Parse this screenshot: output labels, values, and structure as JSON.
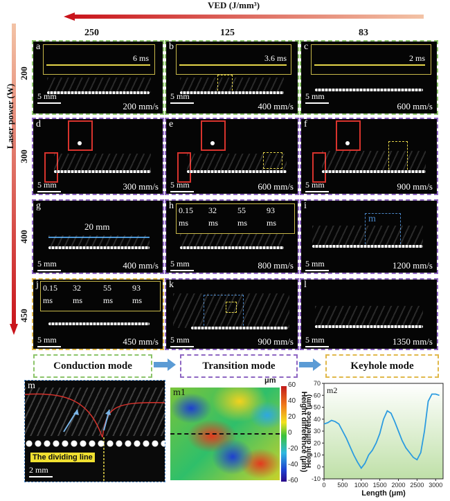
{
  "header": {
    "ved_label": "VED (J/mm³)",
    "columns": [
      "250",
      "125",
      "83"
    ],
    "y_axis_label": "Laser power (W)",
    "rows": [
      "200",
      "300",
      "400",
      "450"
    ]
  },
  "panels": [
    {
      "id": "a",
      "speed": "200 mm/s",
      "scale": "5 mm",
      "inset_time": "6 ms"
    },
    {
      "id": "b",
      "speed": "400 mm/s",
      "scale": "5 mm",
      "inset_time": "3.6 ms"
    },
    {
      "id": "c",
      "speed": "600 mm/s",
      "scale": "5 mm",
      "inset_time": "2 ms"
    },
    {
      "id": "d",
      "speed": "300 mm/s",
      "scale": "5 mm"
    },
    {
      "id": "e",
      "speed": "600 mm/s",
      "scale": "5 mm"
    },
    {
      "id": "f",
      "speed": "900 mm/s",
      "scale": "5 mm"
    },
    {
      "id": "g",
      "speed": "400 mm/s",
      "scale": "5 mm",
      "length": "20 mm"
    },
    {
      "id": "h",
      "speed": "800 mm/s",
      "scale": "5 mm"
    },
    {
      "id": "i",
      "speed": "1200 mm/s",
      "scale": "5 mm",
      "roi": "m"
    },
    {
      "id": "j",
      "speed": "450 mm/s",
      "scale": "5 mm"
    },
    {
      "id": "k",
      "speed": "900 mm/s",
      "scale": "5 mm"
    },
    {
      "id": "l",
      "speed": "1350 mm/s",
      "scale": "5 mm"
    }
  ],
  "time_steps": [
    "0.15",
    "32",
    "55",
    "93"
  ],
  "time_unit": "ms",
  "modes": [
    "Conduction mode",
    "Transition mode",
    "Keyhole mode"
  ],
  "bottom": {
    "m_label": "m",
    "m_scale": "2 mm",
    "dividing_line": "The dividing line",
    "m1_label": "m1",
    "m1_unit": "μm",
    "m1_colorbar_ticks": [
      "60",
      "40",
      "20",
      "0",
      "-20",
      "-40",
      "-60"
    ],
    "m1_colorbar_label": "Height difference (μm)",
    "m2_label": "m2"
  },
  "chart_data": {
    "type": "line",
    "xlabel": "Length (μm)",
    "ylabel": "Height difference (μm)",
    "xlim": [
      0,
      3200
    ],
    "ylim": [
      -10,
      70
    ],
    "xticks": [
      0,
      500,
      1000,
      1500,
      2000,
      2500,
      3000
    ],
    "yticks": [
      -10,
      0,
      10,
      20,
      30,
      40,
      50,
      60,
      70
    ],
    "x": [
      0,
      100,
      200,
      300,
      400,
      500,
      600,
      700,
      800,
      900,
      1000,
      1100,
      1200,
      1300,
      1400,
      1500,
      1600,
      1700,
      1800,
      1900,
      2000,
      2100,
      2200,
      2300,
      2400,
      2500,
      2600,
      2700,
      2800,
      2900,
      3000,
      3100
    ],
    "values": [
      36,
      37,
      39,
      38,
      36,
      30,
      24,
      17,
      10,
      4,
      -1,
      3,
      10,
      14,
      20,
      28,
      40,
      47,
      45,
      38,
      30,
      22,
      16,
      12,
      8,
      6,
      12,
      30,
      55,
      61,
      61,
      60
    ],
    "color": "#2b9be0"
  }
}
